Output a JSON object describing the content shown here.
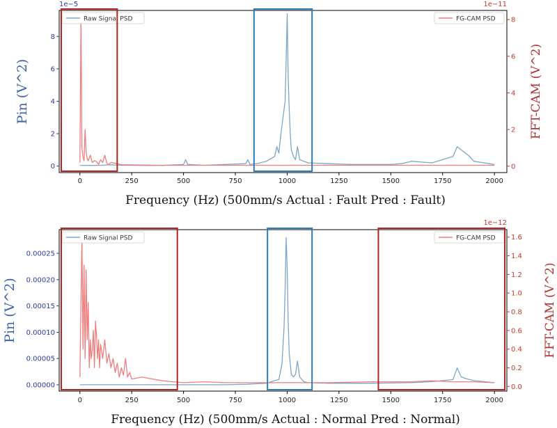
{
  "colors": {
    "raw": "#7aa6cc",
    "cam": "#f07c7c",
    "left_axis": "#2a3aa0",
    "right_axis": "#c0392b",
    "highlight_red": "#b22222",
    "highlight_blue": "#2c7bb6"
  },
  "chart_data": [
    {
      "type": "line",
      "xlabel": "Frequency (Hz)   (500mm/s  Actual : Fault  Pred : Fault)",
      "ylabel_left": "Pin (V^2)",
      "ylabel_right": "FFT-CAM (V^2)",
      "left_multiplier": "1e−5",
      "right_multiplier": "1e−11",
      "xlim": [
        -100,
        2060
      ],
      "xticks": [
        0,
        250,
        500,
        750,
        1000,
        1250,
        1500,
        1750,
        2000
      ],
      "ylim_left": [
        -0.4,
        9.6
      ],
      "yticks_left": [
        0,
        2,
        4,
        6,
        8
      ],
      "ytick_labels_left": [
        "0",
        "2",
        "4",
        "6",
        "8"
      ],
      "ylim_right": [
        -0.35,
        8.5
      ],
      "yticks_right": [
        0,
        2,
        4,
        6,
        8
      ],
      "ytick_labels_right": [
        "0",
        "2",
        "4",
        "6",
        "8"
      ],
      "legend_left": "Raw Signal PSD",
      "legend_right": "FG-CAM PSD",
      "series": [
        {
          "name": "Raw Signal PSD",
          "axis": "left",
          "x": [
            0,
            50,
            100,
            150,
            200,
            250,
            300,
            400,
            500,
            510,
            520,
            600,
            700,
            800,
            810,
            820,
            850,
            900,
            940,
            950,
            960,
            970,
            980,
            990,
            995,
            1000,
            1005,
            1010,
            1015,
            1020,
            1030,
            1040,
            1050,
            1060,
            1100,
            1200,
            1300,
            1400,
            1500,
            1550,
            1600,
            1650,
            1700,
            1750,
            1800,
            1820,
            1840,
            1860,
            1880,
            1900,
            1950,
            2000
          ],
          "y": [
            0.05,
            0.04,
            0.05,
            0.08,
            0.05,
            0.05,
            0.04,
            0.04,
            0.1,
            0.4,
            0.1,
            0.05,
            0.1,
            0.15,
            0.4,
            0.1,
            0.15,
            0.3,
            0.6,
            1.2,
            0.8,
            2.0,
            3.0,
            4.0,
            6.5,
            9.4,
            5.5,
            3.5,
            2.0,
            1.0,
            0.6,
            0.4,
            1.2,
            0.4,
            0.2,
            0.15,
            0.1,
            0.1,
            0.1,
            0.15,
            0.3,
            0.25,
            0.2,
            0.4,
            0.6,
            1.2,
            1.0,
            0.8,
            0.6,
            0.3,
            0.2,
            0.1
          ]
        },
        {
          "name": "FG-CAM PSD",
          "axis": "right",
          "x": [
            0,
            5,
            10,
            15,
            20,
            25,
            30,
            35,
            40,
            50,
            60,
            70,
            80,
            90,
            100,
            110,
            120,
            130,
            140,
            150,
            175,
            200,
            300,
            400,
            500,
            600,
            700,
            800,
            900,
            1000,
            1200,
            1400,
            1600,
            1800,
            2000
          ],
          "y": [
            0.2,
            8.2,
            1.0,
            0.5,
            0.3,
            2.0,
            0.8,
            0.4,
            0.3,
            0.6,
            0.2,
            0.3,
            0.25,
            0.1,
            0.35,
            0.2,
            0.6,
            0.15,
            0.1,
            0.2,
            0.15,
            0.08,
            0.06,
            0.05,
            0.05,
            0.05,
            0.05,
            0.05,
            0.05,
            0.05,
            0.05,
            0.05,
            0.05,
            0.05,
            0.05
          ]
        }
      ],
      "highlights": [
        {
          "color": "red",
          "x0": -90,
          "x1": 180
        },
        {
          "color": "blue",
          "x0": 840,
          "x1": 1120
        }
      ]
    },
    {
      "type": "line",
      "xlabel": "Frequency (Hz)   (500mm/s  Actual : Normal  Pred : Normal)",
      "ylabel_left": "Pin (V^2)",
      "ylabel_right": "FFT-CAM (V^2)",
      "left_multiplier": "",
      "right_multiplier": "1e−12",
      "xlim": [
        -100,
        2060
      ],
      "xticks": [
        0,
        250,
        500,
        750,
        1000,
        1250,
        1500,
        1750,
        2000
      ],
      "ylim_left": [
        -1.2e-05,
        0.000295
      ],
      "yticks_left": [
        0,
        5e-05,
        0.0001,
        0.00015,
        0.0002,
        0.00025
      ],
      "ytick_labels_left": [
        "0.00000",
        "0.00005",
        "0.00010",
        "0.00015",
        "0.00020",
        "0.00025"
      ],
      "ylim_right": [
        -0.05,
        1.68
      ],
      "yticks_right": [
        0,
        0.2,
        0.4,
        0.6,
        0.8,
        1.0,
        1.2,
        1.4,
        1.6
      ],
      "ytick_labels_right": [
        "0.0",
        "0.2",
        "0.4",
        "0.6",
        "0.8",
        "1.0",
        "1.2",
        "1.4",
        "1.6"
      ],
      "legend_left": "Raw Signal PSD",
      "legend_right": "FG-CAM PSD",
      "series": [
        {
          "name": "Raw Signal PSD",
          "axis": "left",
          "x": [
            0,
            100,
            200,
            300,
            400,
            500,
            600,
            700,
            800,
            900,
            940,
            960,
            975,
            985,
            990,
            995,
            1000,
            1005,
            1010,
            1020,
            1030,
            1040,
            1050,
            1060,
            1080,
            1100,
            1200,
            1400,
            1600,
            1700,
            1750,
            1800,
            1820,
            1840,
            1860,
            1900,
            1950,
            2000
          ],
          "y": [
            0.0,
            0.0,
            0.0,
            0.0,
            0.0,
            0.0,
            0.0,
            0.0,
            1e-06,
            3e-06,
            8e-06,
            1e-05,
            4e-05,
            0.00011,
            0.00018,
            0.00028,
            0.00022,
            0.00012,
            6e-05,
            2e-05,
            1.5e-05,
            2e-05,
            4.5e-05,
            1.5e-05,
            6e-06,
            4e-06,
            3e-06,
            3e-06,
            4e-06,
            6e-06,
            8e-06,
            1e-05,
            3.2e-05,
            1.5e-05,
            1.2e-05,
            8e-06,
            6e-06,
            4e-06
          ]
        },
        {
          "name": "FG-CAM PSD",
          "axis": "right",
          "x": [
            0,
            5,
            10,
            15,
            20,
            25,
            30,
            35,
            40,
            45,
            50,
            55,
            60,
            65,
            70,
            75,
            80,
            85,
            90,
            95,
            100,
            110,
            120,
            130,
            140,
            150,
            160,
            170,
            180,
            190,
            200,
            210,
            220,
            230,
            240,
            250,
            300,
            350,
            400,
            450,
            500,
            600,
            700,
            800,
            1000,
            1200,
            1400,
            1600,
            1700,
            1800,
            1900,
            2000
          ],
          "y": [
            0.1,
            0.9,
            1.6,
            0.4,
            1.3,
            0.3,
            1.25,
            0.5,
            0.9,
            0.2,
            0.5,
            0.3,
            0.4,
            0.6,
            0.2,
            0.7,
            0.55,
            0.3,
            0.5,
            0.2,
            0.45,
            0.3,
            0.5,
            0.25,
            0.35,
            0.2,
            0.3,
            0.15,
            0.25,
            0.1,
            0.2,
            0.12,
            0.3,
            0.1,
            0.15,
            0.08,
            0.1,
            0.08,
            0.06,
            0.05,
            0.04,
            0.05,
            0.04,
            0.04,
            0.04,
            0.04,
            0.05,
            0.05,
            0.06,
            0.05,
            0.05,
            0.04
          ]
        }
      ],
      "highlights": [
        {
          "color": "red",
          "x0": -90,
          "x1": 470
        },
        {
          "color": "blue",
          "x0": 905,
          "x1": 1120
        },
        {
          "color": "red",
          "x0": 1440,
          "x1": 2050
        }
      ]
    }
  ]
}
